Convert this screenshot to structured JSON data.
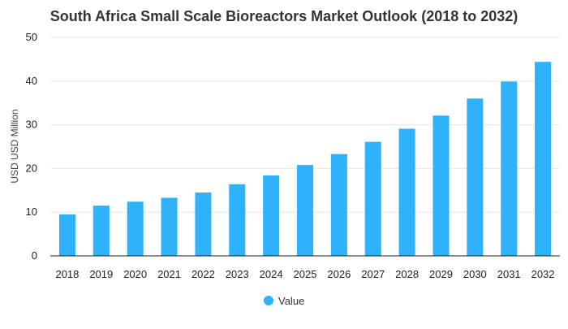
{
  "chart_data": {
    "type": "bar",
    "title": "South Africa Small Scale Bioreactors Market Outlook (2018 to 2032)",
    "xlabel": "",
    "ylabel": "USD USD Million",
    "categories": [
      "2018",
      "2019",
      "2020",
      "2021",
      "2022",
      "2023",
      "2024",
      "2025",
      "2026",
      "2027",
      "2028",
      "2029",
      "2030",
      "2031",
      "2032"
    ],
    "series": [
      {
        "name": "Value",
        "values": [
          9.5,
          11.5,
          12.4,
          13.3,
          14.5,
          16.4,
          18.4,
          20.8,
          23.3,
          26.1,
          29.1,
          32.1,
          36.0,
          39.9,
          44.4
        ]
      }
    ],
    "ylim": [
      0,
      50
    ],
    "yticks": [
      0,
      10,
      20,
      30,
      40,
      50
    ],
    "grid": true,
    "legend_position": "bottom-center",
    "colors": {
      "bar": "#2db2fb",
      "grid": "#e6e6e6",
      "axis": "#222222"
    }
  }
}
